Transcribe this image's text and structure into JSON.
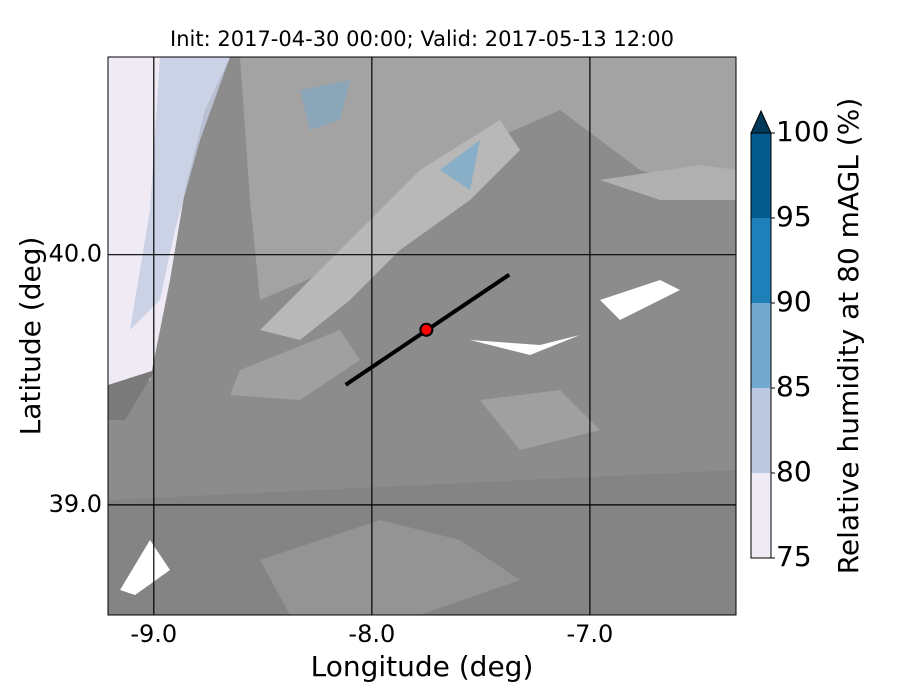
{
  "chart_data": {
    "type": "map",
    "title": "Init: 2017-04-30 00:00; Valid: 2017-05-13 12:00",
    "xlabel": "Longitude (deg)",
    "ylabel": "Latitude (deg)",
    "xlim": [
      -9.21,
      -6.33
    ],
    "ylim": [
      38.56,
      40.79
    ],
    "xticks": [
      {
        "value": -9,
        "label": "-9.0"
      },
      {
        "value": -8,
        "label": "-8.0"
      },
      {
        "value": -7,
        "label": "-7.0"
      }
    ],
    "yticks": [
      {
        "value": 39,
        "label": "39.0"
      },
      {
        "value": 40,
        "label": "40.0"
      }
    ],
    "grid": true,
    "transect": {
      "x": [
        -8.12,
        -7.37
      ],
      "y": [
        39.48,
        39.92
      ],
      "color": "#000000"
    },
    "point": {
      "x": -7.75,
      "y": 39.7,
      "color": "#ff0000"
    },
    "colorbar": {
      "label": "Relative humidity at 80 mAGL (%)",
      "lim": [
        75,
        100
      ],
      "ticks": [
        75,
        80,
        85,
        90,
        95,
        100
      ],
      "colors": [
        "#efeaf4",
        "#bdc8e1",
        "#74a9cf",
        "#1f7fb8",
        "#045a8d"
      ],
      "extend_color": "#023858"
    }
  }
}
